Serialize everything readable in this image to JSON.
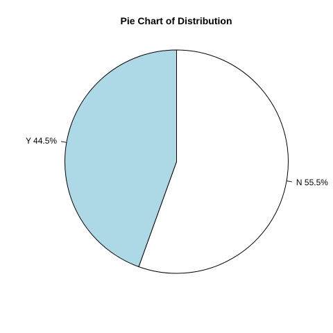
{
  "chart_data": {
    "type": "pie",
    "title": "Pie Chart of Distribution",
    "slices": [
      {
        "label": "N 55.5%",
        "category": "N",
        "value": 55.5,
        "color": "#ffffff"
      },
      {
        "label": "Y 44.5%",
        "category": "Y",
        "value": 44.5,
        "color": "#add8e6"
      }
    ],
    "start_angle_deg": 90,
    "direction": "clockwise",
    "legend": "none"
  }
}
